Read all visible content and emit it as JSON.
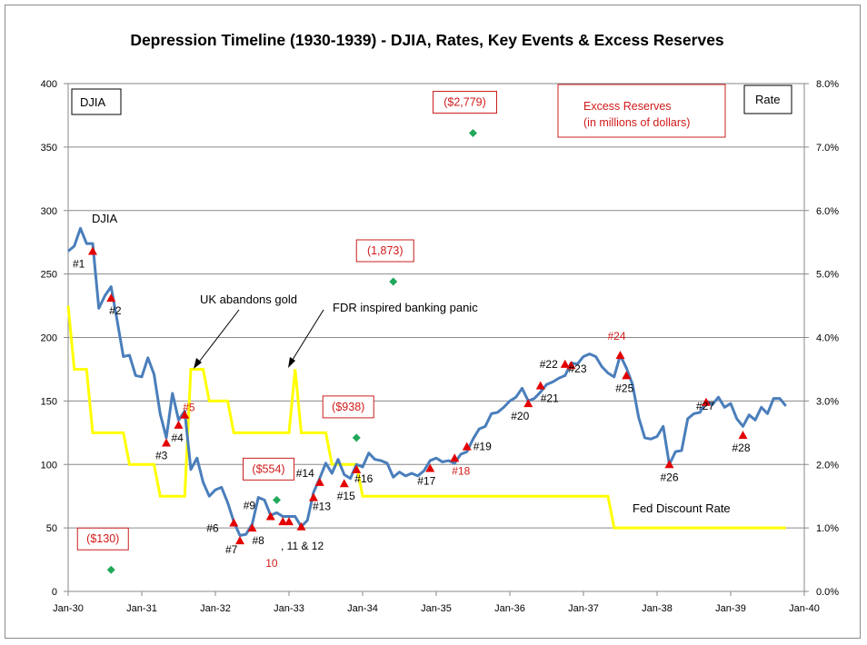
{
  "chart_data": {
    "type": "line",
    "title": "Depression  Timeline (1930-1939) - DJIA, Rates, Key Events & Excess Reserves",
    "left_axis_box": "DJIA",
    "right_axis_box": "Rate",
    "x_ticks": [
      "Jan-30",
      "Jan-31",
      "Jan-32",
      "Jan-33",
      "Jan-34",
      "Jan-35",
      "Jan-36",
      "Jan-37",
      "Jan-38",
      "Jan-39",
      "Jan-40"
    ],
    "y_left_ticks": [
      "0",
      "50",
      "100",
      "150",
      "200",
      "250",
      "300",
      "350",
      "400"
    ],
    "y_right_ticks": [
      "0.0%",
      "1.0%",
      "2.0%",
      "3.0%",
      "4.0%",
      "5.0%",
      "6.0%",
      "7.0%",
      "8.0%"
    ],
    "ylim_left": [
      0,
      400
    ],
    "ylim_right": [
      0,
      8
    ],
    "xlim": [
      0,
      120
    ],
    "grid": "horizontal",
    "series": [
      {
        "name": "DJIA",
        "color": "#4a7ebb",
        "points": [
          [
            0,
            268
          ],
          [
            1,
            272
          ],
          [
            2,
            286
          ],
          [
            3,
            274
          ],
          [
            4,
            274
          ],
          [
            5,
            223
          ],
          [
            6,
            233
          ],
          [
            7,
            240
          ],
          [
            8,
            213
          ],
          [
            9,
            185
          ],
          [
            10,
            186
          ],
          [
            11,
            170
          ],
          [
            12,
            169
          ],
          [
            13,
            184
          ],
          [
            14,
            171
          ],
          [
            15,
            140
          ],
          [
            16,
            121
          ],
          [
            17,
            156
          ],
          [
            18,
            135
          ],
          [
            19,
            142
          ],
          [
            20,
            96
          ],
          [
            21,
            105
          ],
          [
            22,
            86
          ],
          [
            23,
            75
          ],
          [
            24,
            80
          ],
          [
            25,
            82
          ],
          [
            26,
            70
          ],
          [
            27,
            55
          ],
          [
            28,
            44
          ],
          [
            29,
            45
          ],
          [
            30,
            53
          ],
          [
            31,
            74
          ],
          [
            32,
            72
          ],
          [
            33,
            60
          ],
          [
            34,
            62
          ],
          [
            35,
            59
          ],
          [
            36,
            59
          ],
          [
            37,
            59
          ],
          [
            38,
            51
          ],
          [
            39,
            56
          ],
          [
            40,
            78
          ],
          [
            41,
            89
          ],
          [
            42,
            101
          ],
          [
            43,
            93
          ],
          [
            44,
            104
          ],
          [
            45,
            92
          ],
          [
            46,
            89
          ],
          [
            47,
            100
          ],
          [
            48,
            98
          ],
          [
            49,
            109
          ],
          [
            50,
            104
          ],
          [
            51,
            103
          ],
          [
            52,
            101
          ],
          [
            53,
            90
          ],
          [
            54,
            94
          ],
          [
            55,
            91
          ],
          [
            56,
            93
          ],
          [
            57,
            91
          ],
          [
            58,
            95
          ],
          [
            59,
            103
          ],
          [
            60,
            105
          ],
          [
            61,
            102
          ],
          [
            62,
            103
          ],
          [
            63,
            101
          ],
          [
            64,
            108
          ],
          [
            65,
            110
          ],
          [
            66,
            120
          ],
          [
            67,
            128
          ],
          [
            68,
            130
          ],
          [
            69,
            140
          ],
          [
            70,
            141
          ],
          [
            71,
            145
          ],
          [
            72,
            150
          ],
          [
            73,
            153
          ],
          [
            74,
            160
          ],
          [
            75,
            150
          ],
          [
            76,
            152
          ],
          [
            77,
            157
          ],
          [
            78,
            163
          ],
          [
            79,
            165
          ],
          [
            80,
            168
          ],
          [
            81,
            170
          ],
          [
            82,
            180
          ],
          [
            83,
            179
          ],
          [
            84,
            185
          ],
          [
            85,
            187
          ],
          [
            86,
            185
          ],
          [
            87,
            177
          ],
          [
            88,
            172
          ],
          [
            89,
            169
          ],
          [
            90,
            186
          ],
          [
            91,
            176
          ],
          [
            92,
            163
          ],
          [
            93,
            137
          ],
          [
            94,
            121
          ],
          [
            95,
            120
          ],
          [
            96,
            122
          ],
          [
            97,
            130
          ],
          [
            98,
            100
          ],
          [
            99,
            110
          ],
          [
            100,
            111
          ],
          [
            101,
            136
          ],
          [
            102,
            140
          ],
          [
            103,
            141
          ],
          [
            104,
            150
          ],
          [
            105,
            147
          ],
          [
            106,
            153
          ],
          [
            107,
            145
          ],
          [
            108,
            148
          ],
          [
            109,
            136
          ],
          [
            110,
            130
          ],
          [
            111,
            139
          ],
          [
            112,
            135
          ],
          [
            113,
            145
          ],
          [
            114,
            140
          ],
          [
            115,
            152
          ],
          [
            116,
            152
          ],
          [
            117,
            146
          ]
        ]
      },
      {
        "name": "Fed Discount Rate",
        "color": "#ffff00",
        "points": [
          [
            0,
            4.5
          ],
          [
            1,
            3.5
          ],
          [
            2,
            3.5
          ],
          [
            3,
            3.5
          ],
          [
            4,
            2.5
          ],
          [
            9,
            2.5
          ],
          [
            10,
            2.0
          ],
          [
            14,
            2.0
          ],
          [
            15,
            1.5
          ],
          [
            19,
            1.5
          ],
          [
            20,
            3.5
          ],
          [
            21,
            3.5
          ],
          [
            22,
            3.5
          ],
          [
            23,
            3.0
          ],
          [
            26,
            3.0
          ],
          [
            27,
            2.5
          ],
          [
            36,
            2.5
          ],
          [
            37,
            3.5
          ],
          [
            38,
            2.5
          ],
          [
            42,
            2.5
          ],
          [
            43,
            2.0
          ],
          [
            47,
            2.0
          ],
          [
            48,
            1.5
          ],
          [
            88,
            1.5
          ],
          [
            89,
            1.0
          ],
          [
            117,
            1.0
          ]
        ]
      },
      {
        "name": "Excess Reserves",
        "color": "#22a85a",
        "points": [
          [
            7,
            17
          ],
          [
            34,
            72
          ],
          [
            47,
            121
          ],
          [
            53,
            244
          ],
          [
            66,
            361
          ],
          [
            83,
            375
          ]
        ],
        "labels": [
          "($130)",
          "($554)",
          "($938)",
          "(1,873)",
          "($2,779)",
          ""
        ]
      }
    ],
    "events": [
      {
        "label": "#1",
        "x": 4,
        "y": 268,
        "red": false
      },
      {
        "label": "#2",
        "x": 7,
        "y": 231,
        "red": false
      },
      {
        "label": "#3",
        "x": 16,
        "y": 117,
        "red": false
      },
      {
        "label": "#4",
        "x": 18,
        "y": 131,
        "red": false
      },
      {
        "label": "#5",
        "x": 19,
        "y": 139,
        "red": true
      },
      {
        "label": "#6",
        "x": 27,
        "y": 54,
        "red": false
      },
      {
        "label": "#7",
        "x": 28,
        "y": 40,
        "red": false
      },
      {
        "label": "#8",
        "x": 30,
        "y": 50,
        "red": false
      },
      {
        "label": "#9",
        "x": 33,
        "y": 59,
        "red": false
      },
      {
        "label": "10",
        "x": 35,
        "y": 55,
        "red": true
      },
      {
        "label": "11",
        "x": 36,
        "y": 55,
        "red": false
      },
      {
        "label": "12",
        "x": 38,
        "y": 51,
        "red": false
      },
      {
        "label": "#13",
        "x": 40,
        "y": 74,
        "red": false
      },
      {
        "label": "#14",
        "x": 41,
        "y": 86,
        "red": false
      },
      {
        "label": "#15",
        "x": 45,
        "y": 85,
        "red": false
      },
      {
        "label": "#16",
        "x": 47,
        "y": 96,
        "red": false
      },
      {
        "label": "#17",
        "x": 59,
        "y": 97,
        "red": false
      },
      {
        "label": "#18",
        "x": 63,
        "y": 105,
        "red": true
      },
      {
        "label": "#19",
        "x": 65,
        "y": 114,
        "red": false
      },
      {
        "label": "#20",
        "x": 75,
        "y": 148,
        "red": false
      },
      {
        "label": "#21",
        "x": 77,
        "y": 162,
        "red": false
      },
      {
        "label": "#22",
        "x": 81,
        "y": 179,
        "red": false
      },
      {
        "label": "#23",
        "x": 82,
        "y": 178,
        "red": false
      },
      {
        "label": "#24",
        "x": 90,
        "y": 186,
        "red": true
      },
      {
        "label": "#25",
        "x": 91,
        "y": 170,
        "red": false
      },
      {
        "label": "#26",
        "x": 98,
        "y": 100,
        "red": false
      },
      {
        "label": "#27",
        "x": 104,
        "y": 149,
        "red": false
      },
      {
        "label": "#28",
        "x": 110,
        "y": 123,
        "red": false
      }
    ],
    "annotations": {
      "djia_label": "DJIA",
      "uk_gold": "UK abandons gold",
      "fdr_panic": "FDR inspired banking panic",
      "events_10_12_sep": ", 11 & 12",
      "fed_rate_label": "Fed Discount Rate",
      "excess_reserves_line1": "Excess Reserves",
      "excess_reserves_line2": "(in millions of dollars)"
    }
  }
}
